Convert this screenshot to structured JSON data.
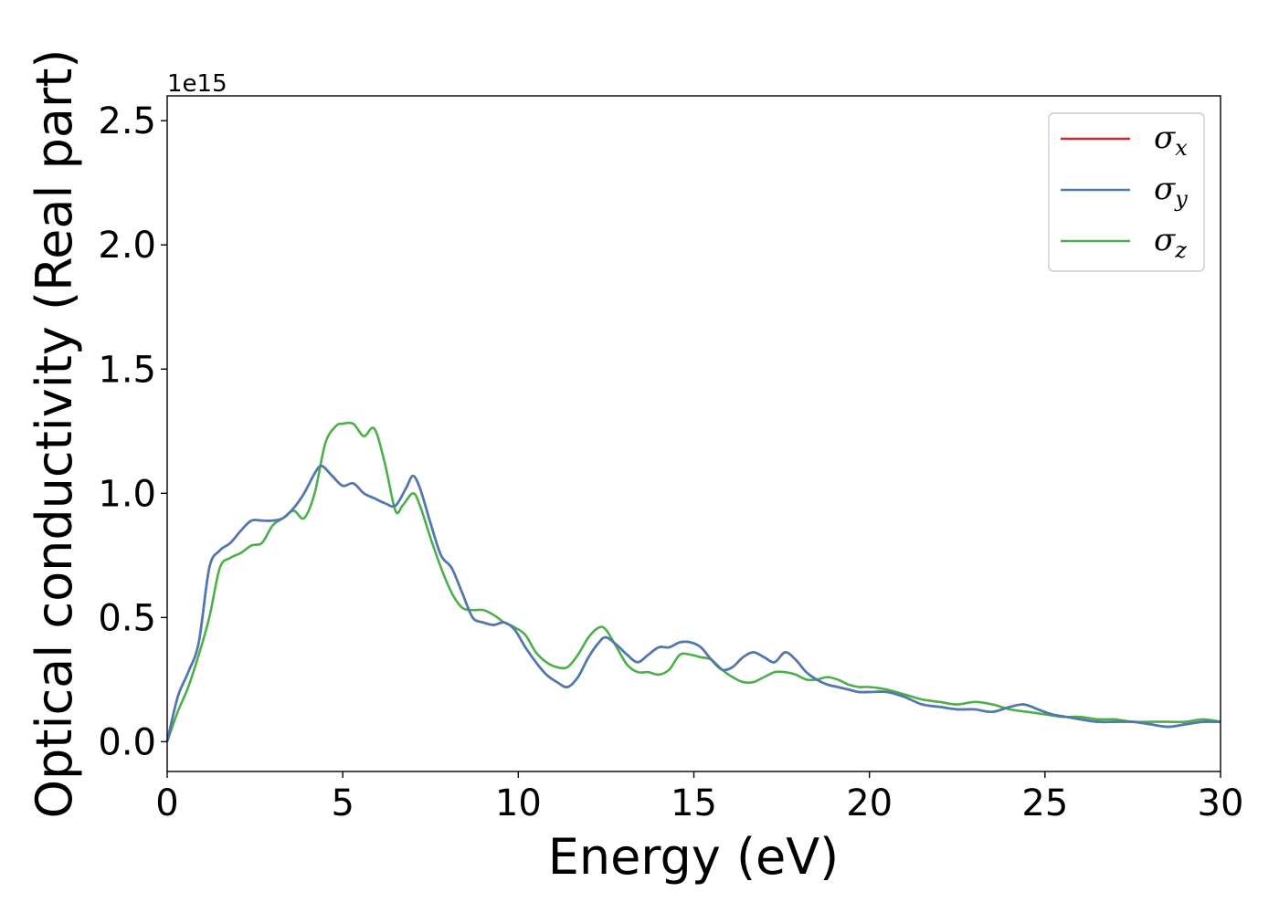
{
  "chart_data": {
    "type": "line",
    "xlabel": "Energy (eV)",
    "ylabel": "Optical conductivity (Real part)",
    "y_offset_text": "1e15",
    "xlim": [
      0,
      30
    ],
    "ylim": [
      -0.12,
      2.6
    ],
    "x_ticks": [
      0,
      5,
      10,
      15,
      20,
      25,
      30
    ],
    "x_tick_labels": [
      "0",
      "5",
      "10",
      "15",
      "20",
      "25",
      "30"
    ],
    "y_ticks": [
      0.0,
      0.5,
      1.0,
      1.5,
      2.0,
      2.5
    ],
    "y_tick_labels": [
      "0.0",
      "0.5",
      "1.0",
      "1.5",
      "2.0",
      "2.5"
    ],
    "grid": false,
    "legend_position": "top-right",
    "y_unit_multiplier": "1e15",
    "series": [
      {
        "name": "σx",
        "symbol": "σ",
        "subscript": "x",
        "color": "#d62728",
        "x": [
          0,
          0.3,
          0.6,
          0.9,
          1.2,
          1.5,
          1.8,
          2.1,
          2.4,
          2.7,
          3.0,
          3.3,
          3.6,
          3.9,
          4.2,
          4.4,
          4.7,
          5.0,
          5.3,
          5.6,
          5.9,
          6.2,
          6.5,
          6.8,
          7.0,
          7.2,
          7.5,
          7.8,
          8.1,
          8.4,
          8.7,
          9.0,
          9.3,
          9.6,
          9.9,
          10.2,
          10.5,
          10.8,
          11.1,
          11.4,
          11.7,
          12.0,
          12.3,
          12.5,
          12.8,
          13.1,
          13.4,
          13.7,
          14.0,
          14.3,
          14.6,
          14.9,
          15.2,
          15.5,
          15.8,
          16.1,
          16.4,
          16.7,
          17.0,
          17.3,
          17.6,
          17.9,
          18.2,
          18.5,
          18.8,
          19.1,
          19.4,
          19.7,
          20.0,
          20.5,
          21.0,
          21.5,
          22.0,
          22.5,
          23.0,
          23.5,
          24.0,
          24.4,
          24.8,
          25.2,
          25.6,
          26.0,
          26.5,
          27.0,
          27.5,
          28.0,
          28.5,
          29.0,
          29.5,
          30.0
        ],
        "values": [
          0.0,
          0.18,
          0.28,
          0.4,
          0.7,
          0.77,
          0.8,
          0.85,
          0.89,
          0.89,
          0.89,
          0.9,
          0.94,
          1.0,
          1.08,
          1.11,
          1.07,
          1.03,
          1.04,
          1.0,
          0.98,
          0.96,
          0.95,
          1.02,
          1.07,
          1.02,
          0.88,
          0.75,
          0.7,
          0.6,
          0.5,
          0.48,
          0.47,
          0.48,
          0.45,
          0.38,
          0.32,
          0.27,
          0.24,
          0.22,
          0.26,
          0.34,
          0.4,
          0.42,
          0.39,
          0.35,
          0.32,
          0.35,
          0.38,
          0.38,
          0.4,
          0.4,
          0.38,
          0.33,
          0.29,
          0.3,
          0.34,
          0.36,
          0.34,
          0.32,
          0.36,
          0.33,
          0.28,
          0.25,
          0.23,
          0.22,
          0.21,
          0.2,
          0.2,
          0.2,
          0.18,
          0.15,
          0.14,
          0.13,
          0.13,
          0.12,
          0.14,
          0.15,
          0.13,
          0.11,
          0.1,
          0.09,
          0.08,
          0.08,
          0.08,
          0.07,
          0.06,
          0.07,
          0.08,
          0.08
        ]
      },
      {
        "name": "σy",
        "symbol": "σ",
        "subscript": "y",
        "color": "#4a7bb5",
        "x": [
          0,
          0.3,
          0.6,
          0.9,
          1.2,
          1.5,
          1.8,
          2.1,
          2.4,
          2.7,
          3.0,
          3.3,
          3.6,
          3.9,
          4.2,
          4.4,
          4.7,
          5.0,
          5.3,
          5.6,
          5.9,
          6.2,
          6.5,
          6.8,
          7.0,
          7.2,
          7.5,
          7.8,
          8.1,
          8.4,
          8.7,
          9.0,
          9.3,
          9.6,
          9.9,
          10.2,
          10.5,
          10.8,
          11.1,
          11.4,
          11.7,
          12.0,
          12.3,
          12.5,
          12.8,
          13.1,
          13.4,
          13.7,
          14.0,
          14.3,
          14.6,
          14.9,
          15.2,
          15.5,
          15.8,
          16.1,
          16.4,
          16.7,
          17.0,
          17.3,
          17.6,
          17.9,
          18.2,
          18.5,
          18.8,
          19.1,
          19.4,
          19.7,
          20.0,
          20.5,
          21.0,
          21.5,
          22.0,
          22.5,
          23.0,
          23.5,
          24.0,
          24.4,
          24.8,
          25.2,
          25.6,
          26.0,
          26.5,
          27.0,
          27.5,
          28.0,
          28.5,
          29.0,
          29.5,
          30.0
        ],
        "values": [
          0.0,
          0.18,
          0.28,
          0.4,
          0.7,
          0.77,
          0.8,
          0.85,
          0.89,
          0.89,
          0.89,
          0.9,
          0.94,
          1.0,
          1.08,
          1.11,
          1.07,
          1.03,
          1.04,
          1.0,
          0.98,
          0.96,
          0.95,
          1.02,
          1.07,
          1.02,
          0.88,
          0.75,
          0.7,
          0.6,
          0.5,
          0.48,
          0.47,
          0.48,
          0.45,
          0.38,
          0.32,
          0.27,
          0.24,
          0.22,
          0.26,
          0.34,
          0.4,
          0.42,
          0.39,
          0.35,
          0.32,
          0.35,
          0.38,
          0.38,
          0.4,
          0.4,
          0.38,
          0.33,
          0.29,
          0.3,
          0.34,
          0.36,
          0.34,
          0.32,
          0.36,
          0.33,
          0.28,
          0.25,
          0.23,
          0.22,
          0.21,
          0.2,
          0.2,
          0.2,
          0.18,
          0.15,
          0.14,
          0.13,
          0.13,
          0.12,
          0.14,
          0.15,
          0.13,
          0.11,
          0.1,
          0.09,
          0.08,
          0.08,
          0.08,
          0.07,
          0.06,
          0.07,
          0.08,
          0.08
        ]
      },
      {
        "name": "σz",
        "symbol": "σ",
        "subscript": "z",
        "color": "#4daf4a",
        "x": [
          0,
          0.3,
          0.6,
          0.9,
          1.2,
          1.5,
          1.8,
          2.1,
          2.4,
          2.7,
          3.0,
          3.3,
          3.6,
          3.9,
          4.2,
          4.5,
          4.8,
          5.0,
          5.3,
          5.6,
          5.9,
          6.2,
          6.5,
          6.7,
          7.0,
          7.2,
          7.5,
          7.8,
          8.1,
          8.4,
          8.7,
          9.0,
          9.3,
          9.6,
          9.9,
          10.2,
          10.5,
          10.8,
          11.1,
          11.4,
          11.7,
          12.0,
          12.3,
          12.5,
          12.8,
          13.1,
          13.4,
          13.7,
          14.0,
          14.3,
          14.6,
          14.9,
          15.2,
          15.5,
          15.8,
          16.1,
          16.4,
          16.7,
          17.0,
          17.3,
          17.6,
          17.9,
          18.2,
          18.5,
          18.8,
          19.1,
          19.4,
          19.7,
          20.0,
          20.5,
          21.0,
          21.5,
          22.0,
          22.5,
          23.0,
          23.5,
          24.0,
          24.5,
          25.0,
          25.5,
          26.0,
          26.5,
          27.0,
          27.5,
          28.0,
          28.5,
          29.0,
          29.5,
          30.0
        ],
        "values": [
          0.0,
          0.12,
          0.22,
          0.35,
          0.5,
          0.7,
          0.74,
          0.76,
          0.79,
          0.8,
          0.87,
          0.9,
          0.93,
          0.9,
          1.0,
          1.2,
          1.27,
          1.28,
          1.28,
          1.23,
          1.26,
          1.12,
          0.93,
          0.95,
          1.0,
          0.95,
          0.82,
          0.7,
          0.6,
          0.54,
          0.53,
          0.53,
          0.51,
          0.48,
          0.46,
          0.43,
          0.36,
          0.32,
          0.3,
          0.3,
          0.35,
          0.42,
          0.46,
          0.45,
          0.38,
          0.31,
          0.28,
          0.28,
          0.27,
          0.29,
          0.35,
          0.35,
          0.34,
          0.33,
          0.29,
          0.26,
          0.24,
          0.24,
          0.26,
          0.28,
          0.28,
          0.27,
          0.25,
          0.25,
          0.26,
          0.25,
          0.23,
          0.22,
          0.22,
          0.21,
          0.19,
          0.17,
          0.16,
          0.15,
          0.16,
          0.15,
          0.13,
          0.12,
          0.11,
          0.1,
          0.1,
          0.09,
          0.09,
          0.08,
          0.08,
          0.08,
          0.08,
          0.09,
          0.08
        ]
      }
    ]
  }
}
